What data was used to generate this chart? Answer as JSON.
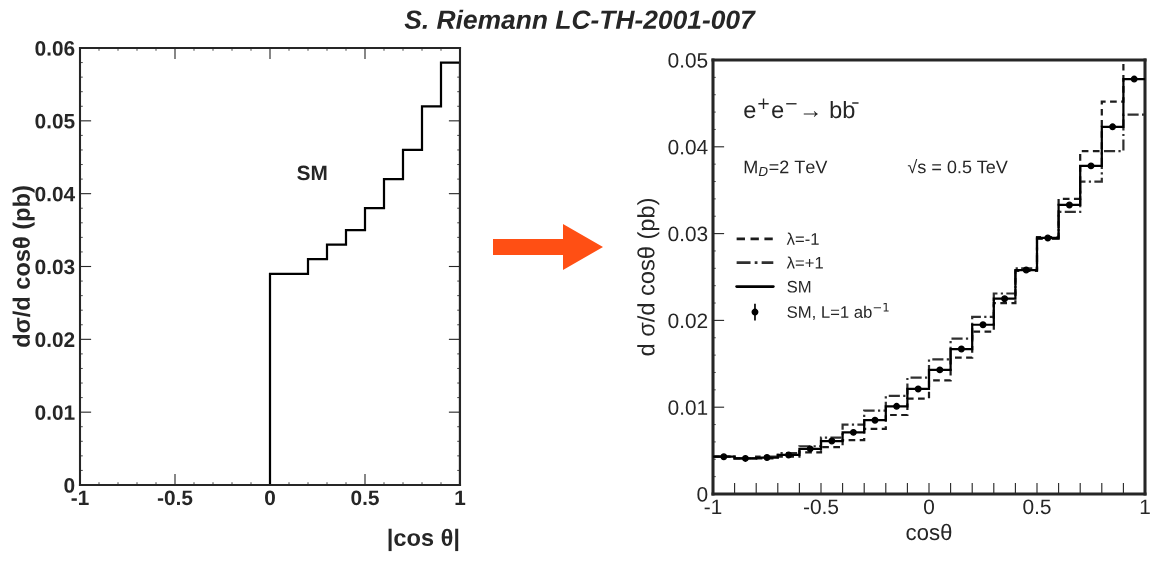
{
  "chart_data": [
    {
      "type": "histogram",
      "title": "S. Riemann LC-TH-2001-007",
      "ylabel": "dσ/d cosθ (pb)",
      "xlabel": "|cos θ|",
      "bins": [
        0,
        0.2,
        0.3,
        0.4,
        0.5,
        0.6,
        0.7,
        0.8,
        0.9,
        1
      ],
      "series": [
        {
          "color": "#000000",
          "line_style": "solid",
          "values": [
            0.029,
            0.031,
            0.033,
            0.035,
            0.038,
            0.042,
            0.046,
            0.052,
            0.058
          ]
        }
      ],
      "annotations": [
        "SM"
      ],
      "xlim": [
        -1,
        1
      ],
      "ylim": [
        0,
        0.06
      ],
      "xticks": [
        -1,
        -0.5,
        0,
        0.5,
        1
      ],
      "yticks": [
        0,
        0.01,
        0.02,
        0.03,
        0.04,
        0.05,
        0.06
      ],
      "grid": false
    },
    {
      "type": "histogram",
      "ylabel": "d σ/d cosθ (pb)",
      "xlabel": "cosθ",
      "bins": [
        -1,
        -0.9,
        -0.8,
        -0.7,
        -0.6,
        -0.5,
        -0.4,
        -0.3,
        -0.2,
        -0.1,
        0,
        0.1,
        0.2,
        0.3,
        0.4,
        0.5,
        0.6,
        0.7,
        0.8,
        0.9,
        1
      ],
      "series": [
        {
          "name": "λ=-1",
          "color": "#1c1c1c",
          "line_style": "dashed",
          "values": [
            0.0043,
            0.0041,
            0.0041,
            0.0043,
            0.0048,
            0.0054,
            0.0062,
            0.0075,
            0.0091,
            0.011,
            0.0131,
            0.0157,
            0.0187,
            0.022,
            0.0257,
            0.0296,
            0.034,
            0.0395,
            0.0452,
            0.05
          ]
        },
        {
          "name": "λ=+1",
          "color": "#303030",
          "line_style": "dashdot",
          "values": [
            0.0043,
            0.0041,
            0.0043,
            0.0047,
            0.0055,
            0.0065,
            0.008,
            0.0096,
            0.0113,
            0.0134,
            0.0155,
            0.0179,
            0.0204,
            0.0231,
            0.026,
            0.0294,
            0.0325,
            0.036,
            0.0395,
            0.0437
          ]
        },
        {
          "name": "SM",
          "color": "#000000",
          "line_style": "solid",
          "values": [
            0.0043,
            0.0041,
            0.0042,
            0.0045,
            0.0052,
            0.0061,
            0.0071,
            0.0085,
            0.0101,
            0.0121,
            0.0143,
            0.0167,
            0.0195,
            0.0225,
            0.0258,
            0.0295,
            0.0333,
            0.0378,
            0.0423,
            0.0478
          ]
        },
        {
          "name": "SM, L=1 ab$^{−1}$",
          "type": "scatter",
          "errors": [
            0.0002,
            0.0002,
            0.0002,
            0.0002,
            0.0002,
            0.0002,
            0.0002,
            0.0002,
            0.0002,
            0.0002,
            0.0002,
            0.0002,
            0.0002,
            0.0002,
            0.0002,
            0.0002,
            0.0002,
            0.0002,
            0.0002,
            0.0002
          ],
          "marker": "circle",
          "color": "#000000",
          "x": [
            -0.95,
            -0.85,
            -0.75,
            -0.65,
            -0.55,
            -0.45,
            -0.35,
            -0.25,
            -0.15,
            -0.05,
            0.05,
            0.15,
            0.25,
            0.35,
            0.45,
            0.55,
            0.65,
            0.75,
            0.85,
            0.95
          ],
          "values": [
            0.0043,
            0.0041,
            0.0042,
            0.0045,
            0.0052,
            0.0061,
            0.0071,
            0.0085,
            0.0101,
            0.0121,
            0.0143,
            0.0167,
            0.0195,
            0.0225,
            0.0258,
            0.0295,
            0.0333,
            0.0378,
            0.0423,
            0.0478
          ]
        }
      ],
      "annotations": [
        "e$^{+}$e$^{−}$→ bb̄",
        "M$_{D}$=2 TeV",
        "√s = 0.5 TeV"
      ],
      "legend": "left",
      "xlim": [
        -1,
        1
      ],
      "ylim": [
        0,
        0.05
      ],
      "xticks": [
        -1,
        {
          "value": -0.9,
          "label": null
        },
        {
          "value": -0.8,
          "label": null
        },
        {
          "value": -0.7,
          "label": null
        },
        {
          "value": -0.6,
          "label": null
        },
        -0.5,
        {
          "value": -0.4,
          "label": null
        },
        {
          "value": -0.3,
          "label": null
        },
        {
          "value": -0.2,
          "label": null
        },
        {
          "value": -0.1,
          "label": null
        },
        0,
        {
          "value": 0.1,
          "label": null
        },
        {
          "value": 0.2,
          "label": null
        },
        {
          "value": 0.3,
          "label": null
        },
        {
          "value": 0.4,
          "label": null
        },
        0.5,
        {
          "value": 0.6,
          "label": null
        },
        {
          "value": 0.7,
          "label": null
        },
        {
          "value": 0.8,
          "label": null
        },
        {
          "value": 0.9,
          "label": null
        },
        1
      ],
      "yticks": [
        0,
        0.01,
        0.02,
        0.03,
        0.04,
        0.05
      ],
      "grid": false
    }
  ]
}
